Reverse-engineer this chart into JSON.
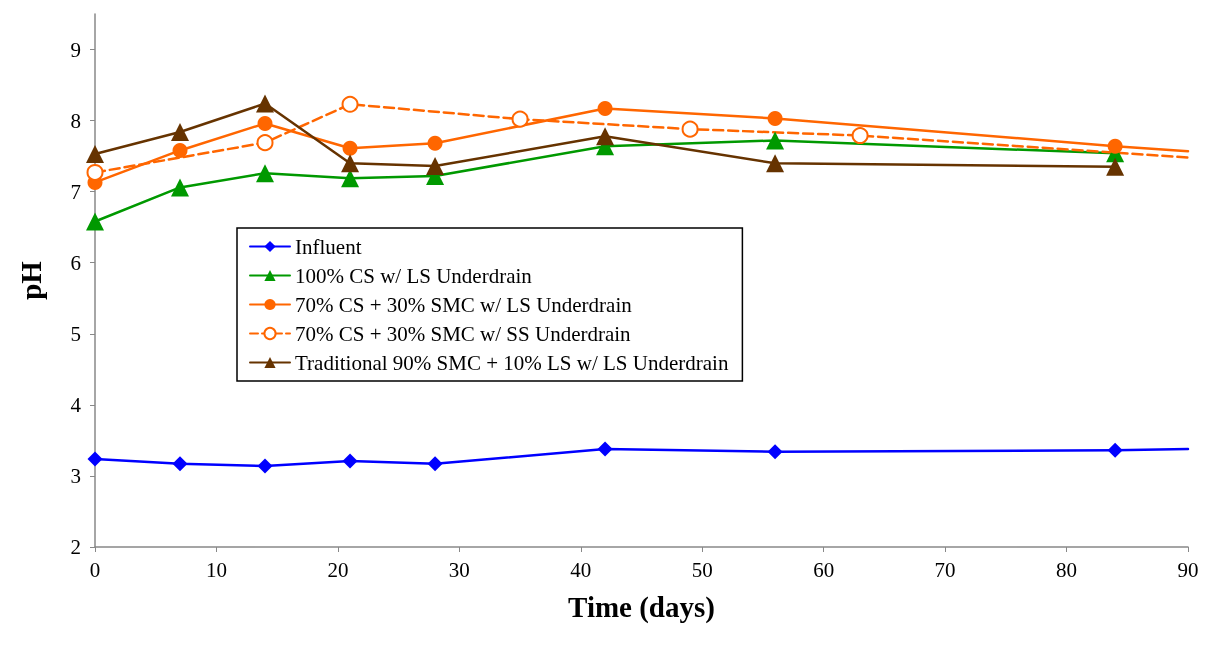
{
  "chart_data": {
    "type": "line",
    "xlabel": "Time (days)",
    "ylabel": "pH",
    "xlim": [
      0,
      90
    ],
    "xticks": [
      0,
      10,
      20,
      30,
      40,
      50,
      60,
      70,
      80,
      90
    ],
    "ylim": [
      2,
      9.5
    ],
    "yticks": [
      2,
      3,
      4,
      5,
      6,
      7,
      8,
      9
    ],
    "grid": false,
    "legend": "center left",
    "series": [
      {
        "name": "Influent",
        "color": "#0000ff",
        "marker": "diamond",
        "line_style": "solid",
        "x": [
          0,
          7,
          14,
          21,
          28,
          42,
          56,
          84,
          90
        ],
        "values": [
          3.24,
          3.17,
          3.14,
          3.21,
          3.17,
          3.38,
          3.34,
          3.36,
          3.38
        ]
      },
      {
        "name": "100% CS w/ LS Underdrain",
        "color": "#009900",
        "marker": "triangle",
        "line_style": "solid",
        "x": [
          0,
          7,
          14,
          21,
          28,
          42,
          56,
          84
        ],
        "values": [
          6.58,
          7.06,
          7.26,
          7.19,
          7.22,
          7.64,
          7.72,
          7.54
        ]
      },
      {
        "name": "70% CS + 30% SMC w/ LS Underdrain",
        "color": "#ff6600",
        "marker": "circle",
        "line_style": "solid",
        "x": [
          0,
          7,
          14,
          21,
          28,
          42,
          56,
          84,
          90
        ],
        "values": [
          7.13,
          7.58,
          7.96,
          7.61,
          7.68,
          8.17,
          8.03,
          7.64,
          7.57
        ]
      },
      {
        "name": "70% CS + 30% SMC w/ SS Underdrain",
        "color": "#ff6600",
        "marker": "circle",
        "line_style": "dashed",
        "x": [
          0,
          14,
          21,
          35,
          49,
          63,
          90
        ],
        "values": [
          7.27,
          7.69,
          8.23,
          8.02,
          7.88,
          7.79,
          7.48
        ]
      },
      {
        "name": "Traditional 90% SMC + 10% LS w/ LS Underdrain",
        "color": "#663300",
        "marker": "triangle",
        "line_style": "solid",
        "x": [
          0,
          7,
          14,
          21,
          28,
          42,
          56,
          84
        ],
        "values": [
          7.53,
          7.84,
          8.24,
          7.4,
          7.36,
          7.78,
          7.4,
          7.35
        ]
      }
    ]
  }
}
